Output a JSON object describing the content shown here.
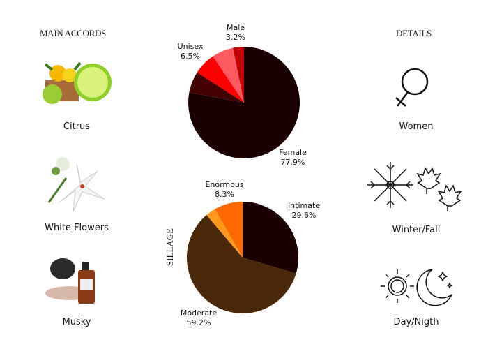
{
  "left": {
    "title": "MAIN ACCORDS",
    "items": [
      {
        "label": "Citrus",
        "icon": "citrus-fruits-image"
      },
      {
        "label": "White Flowers",
        "icon": "white-lily-image"
      },
      {
        "label": "Musky",
        "icon": "musk-bottle-image"
      }
    ]
  },
  "right": {
    "title": "DETAILS",
    "items": [
      {
        "label": "Women",
        "icon": "venus-icon"
      },
      {
        "label": "Winter/Fall",
        "icon": "snowflake-maple-icon"
      },
      {
        "label": "Day/Nigth",
        "icon": "sun-moon-icon"
      }
    ]
  },
  "chart_data": [
    {
      "type": "pie",
      "slices": [
        {
          "name": "Female",
          "label": "Female",
          "pct": "77.9%",
          "value": 77.9,
          "color": "#1a0000"
        },
        {
          "name": "",
          "value": 6.2,
          "color": "#430000"
        },
        {
          "name": "Unisex",
          "label": "Unisex",
          "pct": "6.5%",
          "value": 6.5,
          "color": "#ff0000"
        },
        {
          "name": "",
          "value": 6.2,
          "color": "#ff5a5f"
        },
        {
          "name": "Male",
          "label": "Male",
          "pct": "3.2%",
          "value": 3.2,
          "color": "#c00000"
        }
      ]
    },
    {
      "type": "pie",
      "title": "SILLAGE",
      "slices": [
        {
          "name": "Intimate",
          "label": "Intimate",
          "pct": "29.6%",
          "value": 29.6,
          "color": "#1a0000"
        },
        {
          "name": "Moderate",
          "label": "Moderate",
          "pct": "59.2%",
          "value": 59.2,
          "color": "#4a2808"
        },
        {
          "name": "",
          "value": 2.9,
          "color": "#ff9a1a"
        },
        {
          "name": "Enormous",
          "label": "Enormous",
          "pct": "8.3%",
          "value": 8.3,
          "color": "#ff6a00"
        }
      ]
    }
  ]
}
